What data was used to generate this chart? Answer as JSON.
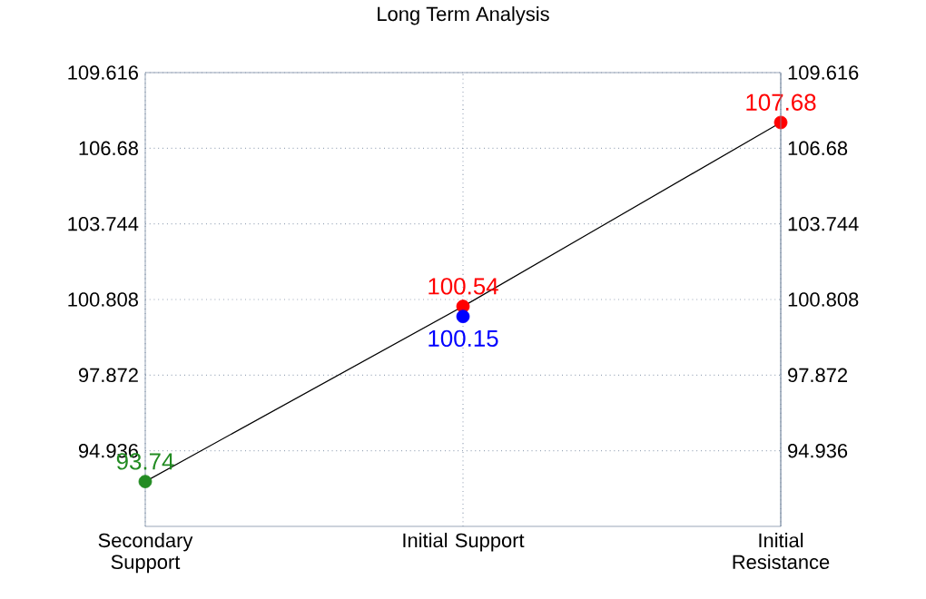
{
  "chart_data": {
    "type": "line",
    "title": "Long Term Analysis",
    "categories": [
      "Secondary Support",
      "Initial Support",
      "Initial Resistance"
    ],
    "series": [
      {
        "color": "#000000",
        "colors": [
          "#228b22",
          "#ff0000",
          "#ff0000"
        ],
        "values": [
          93.74,
          100.54,
          107.68
        ]
      },
      {
        "type": "scatter",
        "color": "#0000ff",
        "values": [
          null,
          100.15,
          null
        ]
      }
    ],
    "ylim": [
      92.0,
      109.616
    ],
    "yticks": [
      94.936,
      97.872,
      100.808,
      103.744,
      106.68,
      109.616
    ],
    "y2lim": [
      92.0,
      109.616
    ],
    "y2ticks": [
      94.936,
      97.872,
      100.808,
      103.744,
      106.68,
      109.616
    ],
    "marker": "circle",
    "grid": true,
    "data_labels": true
  }
}
